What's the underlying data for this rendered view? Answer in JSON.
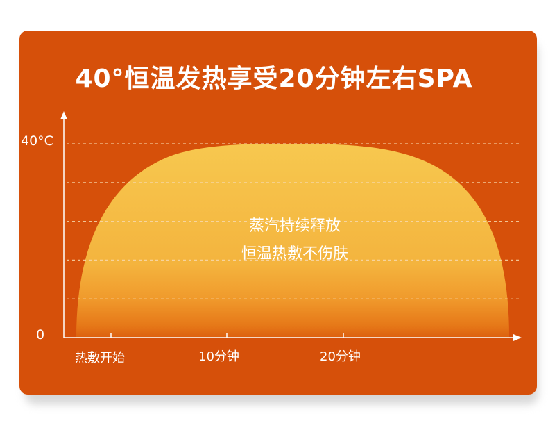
{
  "title": "40°恒温发热享受20分钟左右SPA",
  "chart_data": {
    "type": "area",
    "title": "40°恒温发热享受20分钟左右SPA",
    "y_tick_top": "40°C",
    "y_tick_zero": "0",
    "x_tick_labels": [
      "热敷开始",
      "10分钟",
      "20分钟"
    ],
    "ylim": [
      0,
      40
    ],
    "plateau_value": 40,
    "grid": "dashed",
    "annotation": [
      "蒸汽持续释放",
      "恒温热敷不伤肤"
    ],
    "colors": {
      "background": "#d6500a",
      "fill_top": "#f6c24d",
      "fill_bottom": "#f09a2c",
      "fill_base": "#e36a14",
      "grid": "#f7d4a4",
      "axis": "#ffffff",
      "text": "#ffffff"
    }
  }
}
